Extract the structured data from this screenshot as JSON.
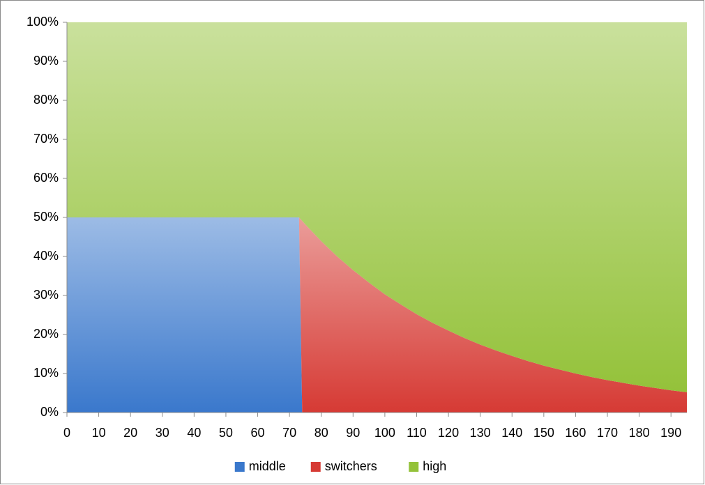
{
  "chart_data": {
    "type": "stacked_area",
    "x": [
      0,
      5,
      10,
      15,
      20,
      25,
      30,
      35,
      40,
      45,
      50,
      55,
      60,
      65,
      70,
      73,
      74,
      75,
      80,
      85,
      90,
      95,
      100,
      105,
      110,
      115,
      120,
      125,
      130,
      135,
      140,
      145,
      150,
      155,
      160,
      165,
      170,
      175,
      180,
      185,
      190,
      195
    ],
    "series": [
      {
        "name": "middle",
        "color": "#3a78cc",
        "values": [
          50,
          50,
          50,
          50,
          50,
          50,
          50,
          50,
          50,
          50,
          50,
          50,
          50,
          50,
          50,
          50,
          0,
          0,
          0,
          0,
          0,
          0,
          0,
          0,
          0,
          0,
          0,
          0,
          0,
          0,
          0,
          0,
          0,
          0,
          0,
          0,
          0,
          0,
          0,
          0,
          0,
          0
        ]
      },
      {
        "name": "switchers",
        "color": "#d63a34",
        "values": [
          0,
          0,
          0,
          0,
          0,
          0,
          0,
          0,
          0,
          0,
          0,
          0,
          0,
          0,
          0,
          0,
          49.1,
          48.2,
          43.9,
          40.0,
          36.5,
          33.3,
          30.3,
          27.7,
          25.2,
          23.0,
          21.0,
          19.1,
          17.4,
          15.9,
          14.5,
          13.2,
          12.0,
          11.0,
          10.0,
          9.1,
          8.3,
          7.6,
          6.9,
          6.3,
          5.7,
          5.2
        ]
      },
      {
        "name": "high",
        "color": "#94c23a",
        "values": [
          50,
          50,
          50,
          50,
          50,
          50,
          50,
          50,
          50,
          50,
          50,
          50,
          50,
          50,
          50,
          50,
          50.9,
          51.8,
          56.1,
          60.0,
          63.5,
          66.7,
          69.7,
          72.3,
          74.8,
          77.0,
          79.0,
          80.9,
          82.6,
          84.1,
          85.5,
          86.8,
          88.0,
          89.0,
          90.0,
          90.9,
          91.7,
          92.4,
          93.1,
          93.7,
          94.3,
          94.8
        ]
      }
    ],
    "xlim": [
      0,
      195
    ],
    "xticks": [
      0,
      10,
      20,
      30,
      40,
      50,
      60,
      70,
      80,
      90,
      100,
      110,
      120,
      130,
      140,
      150,
      160,
      170,
      180,
      190
    ],
    "ylim": [
      0,
      100
    ],
    "yticks": [
      {
        "value": 0,
        "label": "0%"
      },
      {
        "value": 10,
        "label": "10%"
      },
      {
        "value": 20,
        "label": "20%"
      },
      {
        "value": 30,
        "label": "30%"
      },
      {
        "value": 40,
        "label": "40%"
      },
      {
        "value": 50,
        "label": "50%"
      },
      {
        "value": 60,
        "label": "60%"
      },
      {
        "value": 70,
        "label": "70%"
      },
      {
        "value": 80,
        "label": "80%"
      },
      {
        "value": 90,
        "label": "90%"
      },
      {
        "value": 100,
        "label": "100%"
      }
    ],
    "legend": "bottom"
  }
}
